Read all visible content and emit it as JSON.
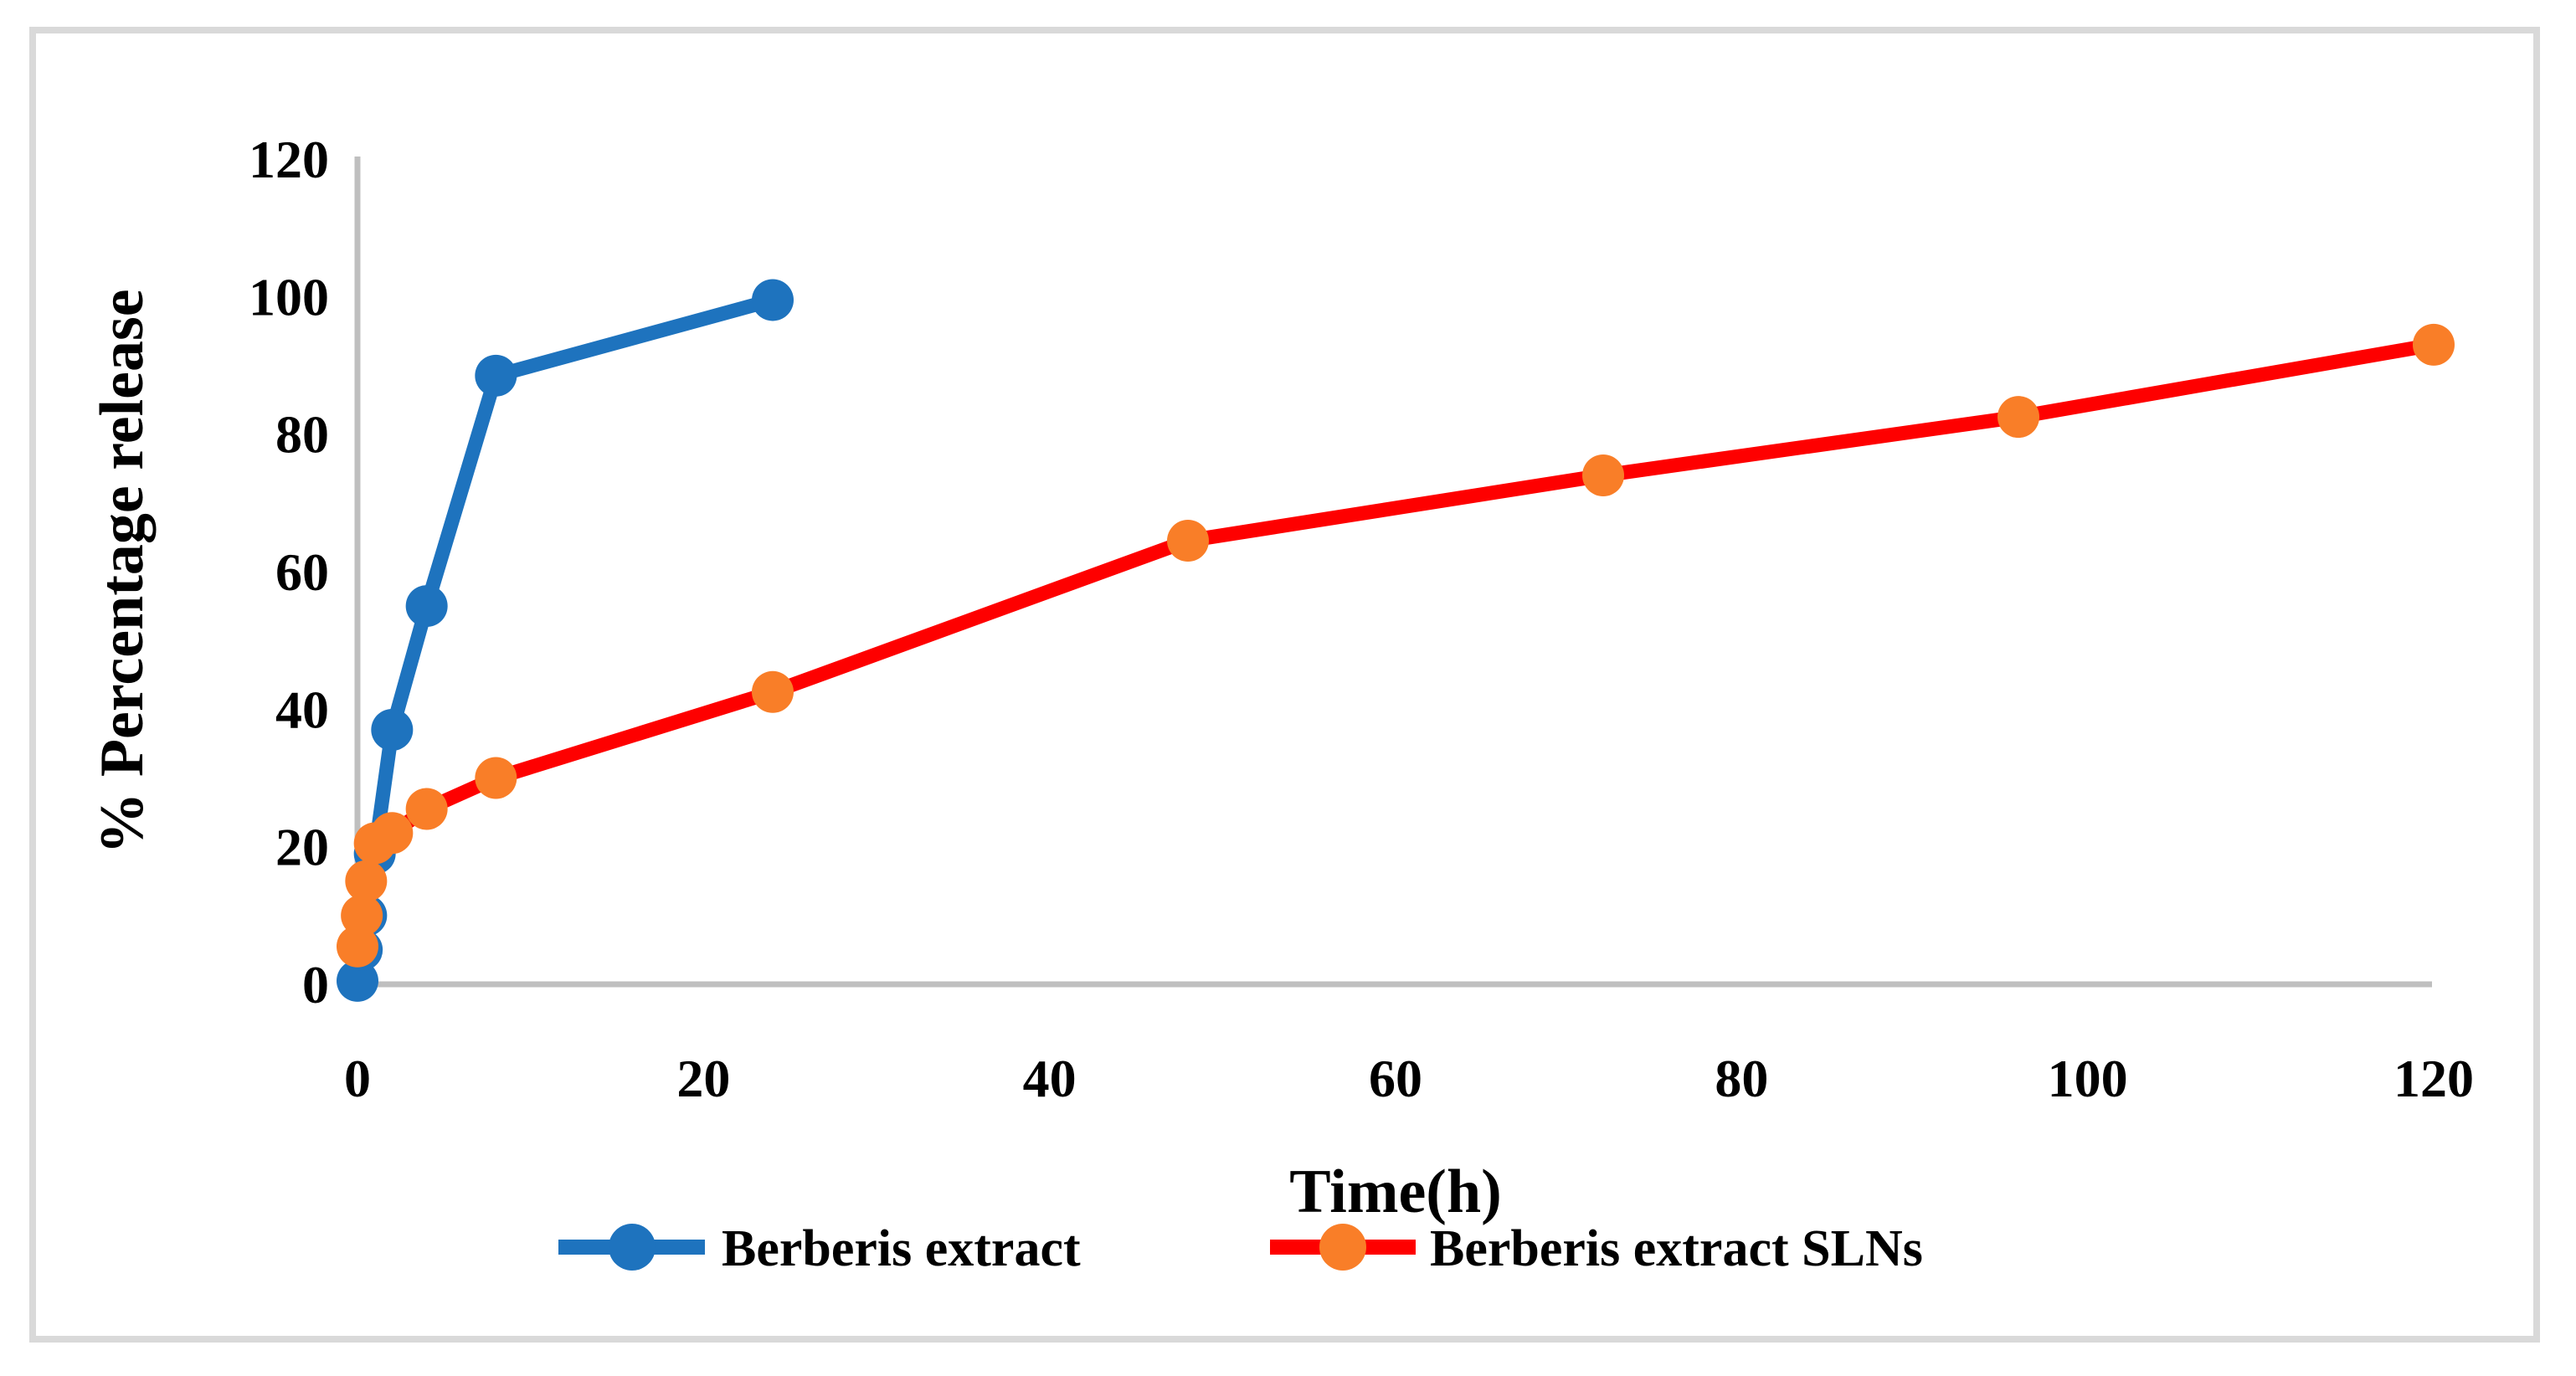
{
  "figure": {
    "background_color": "#FFFFFF",
    "border_color": "#D9D9D9"
  },
  "chart_data": {
    "type": "line",
    "title": "",
    "xlabel": "Time(h)",
    "ylabel": "% Percentage release",
    "xlim": [
      0,
      120
    ],
    "ylim": [
      0,
      120
    ],
    "x_ticks": [
      0,
      20,
      40,
      60,
      80,
      100,
      120
    ],
    "y_ticks": [
      0,
      20,
      40,
      60,
      80,
      100,
      120
    ],
    "grid": false,
    "legend_position": "bottom-center",
    "axis_color": "#BFBFBF",
    "text_color": "#000000",
    "series": [
      {
        "name": "Berberis extract",
        "line_color": "#1E73BE",
        "marker_color": "#1E73BE",
        "marker": "circle",
        "x": [
          0,
          0.25,
          0.5,
          1,
          2,
          4,
          8,
          24
        ],
        "y": [
          0.5,
          5,
          10,
          19,
          37,
          55,
          88.5,
          99.5
        ]
      },
      {
        "name": "Berberis extract SLNs",
        "line_color": "#FE0000",
        "marker_color": "#F97E28",
        "marker": "circle",
        "x": [
          0,
          0.25,
          0.5,
          1,
          2,
          4,
          8,
          24,
          48,
          72,
          96,
          120
        ],
        "y": [
          5.5,
          10,
          15,
          20.5,
          22,
          25.5,
          30,
          42.5,
          64.5,
          74,
          82.5,
          93
        ]
      }
    ]
  }
}
